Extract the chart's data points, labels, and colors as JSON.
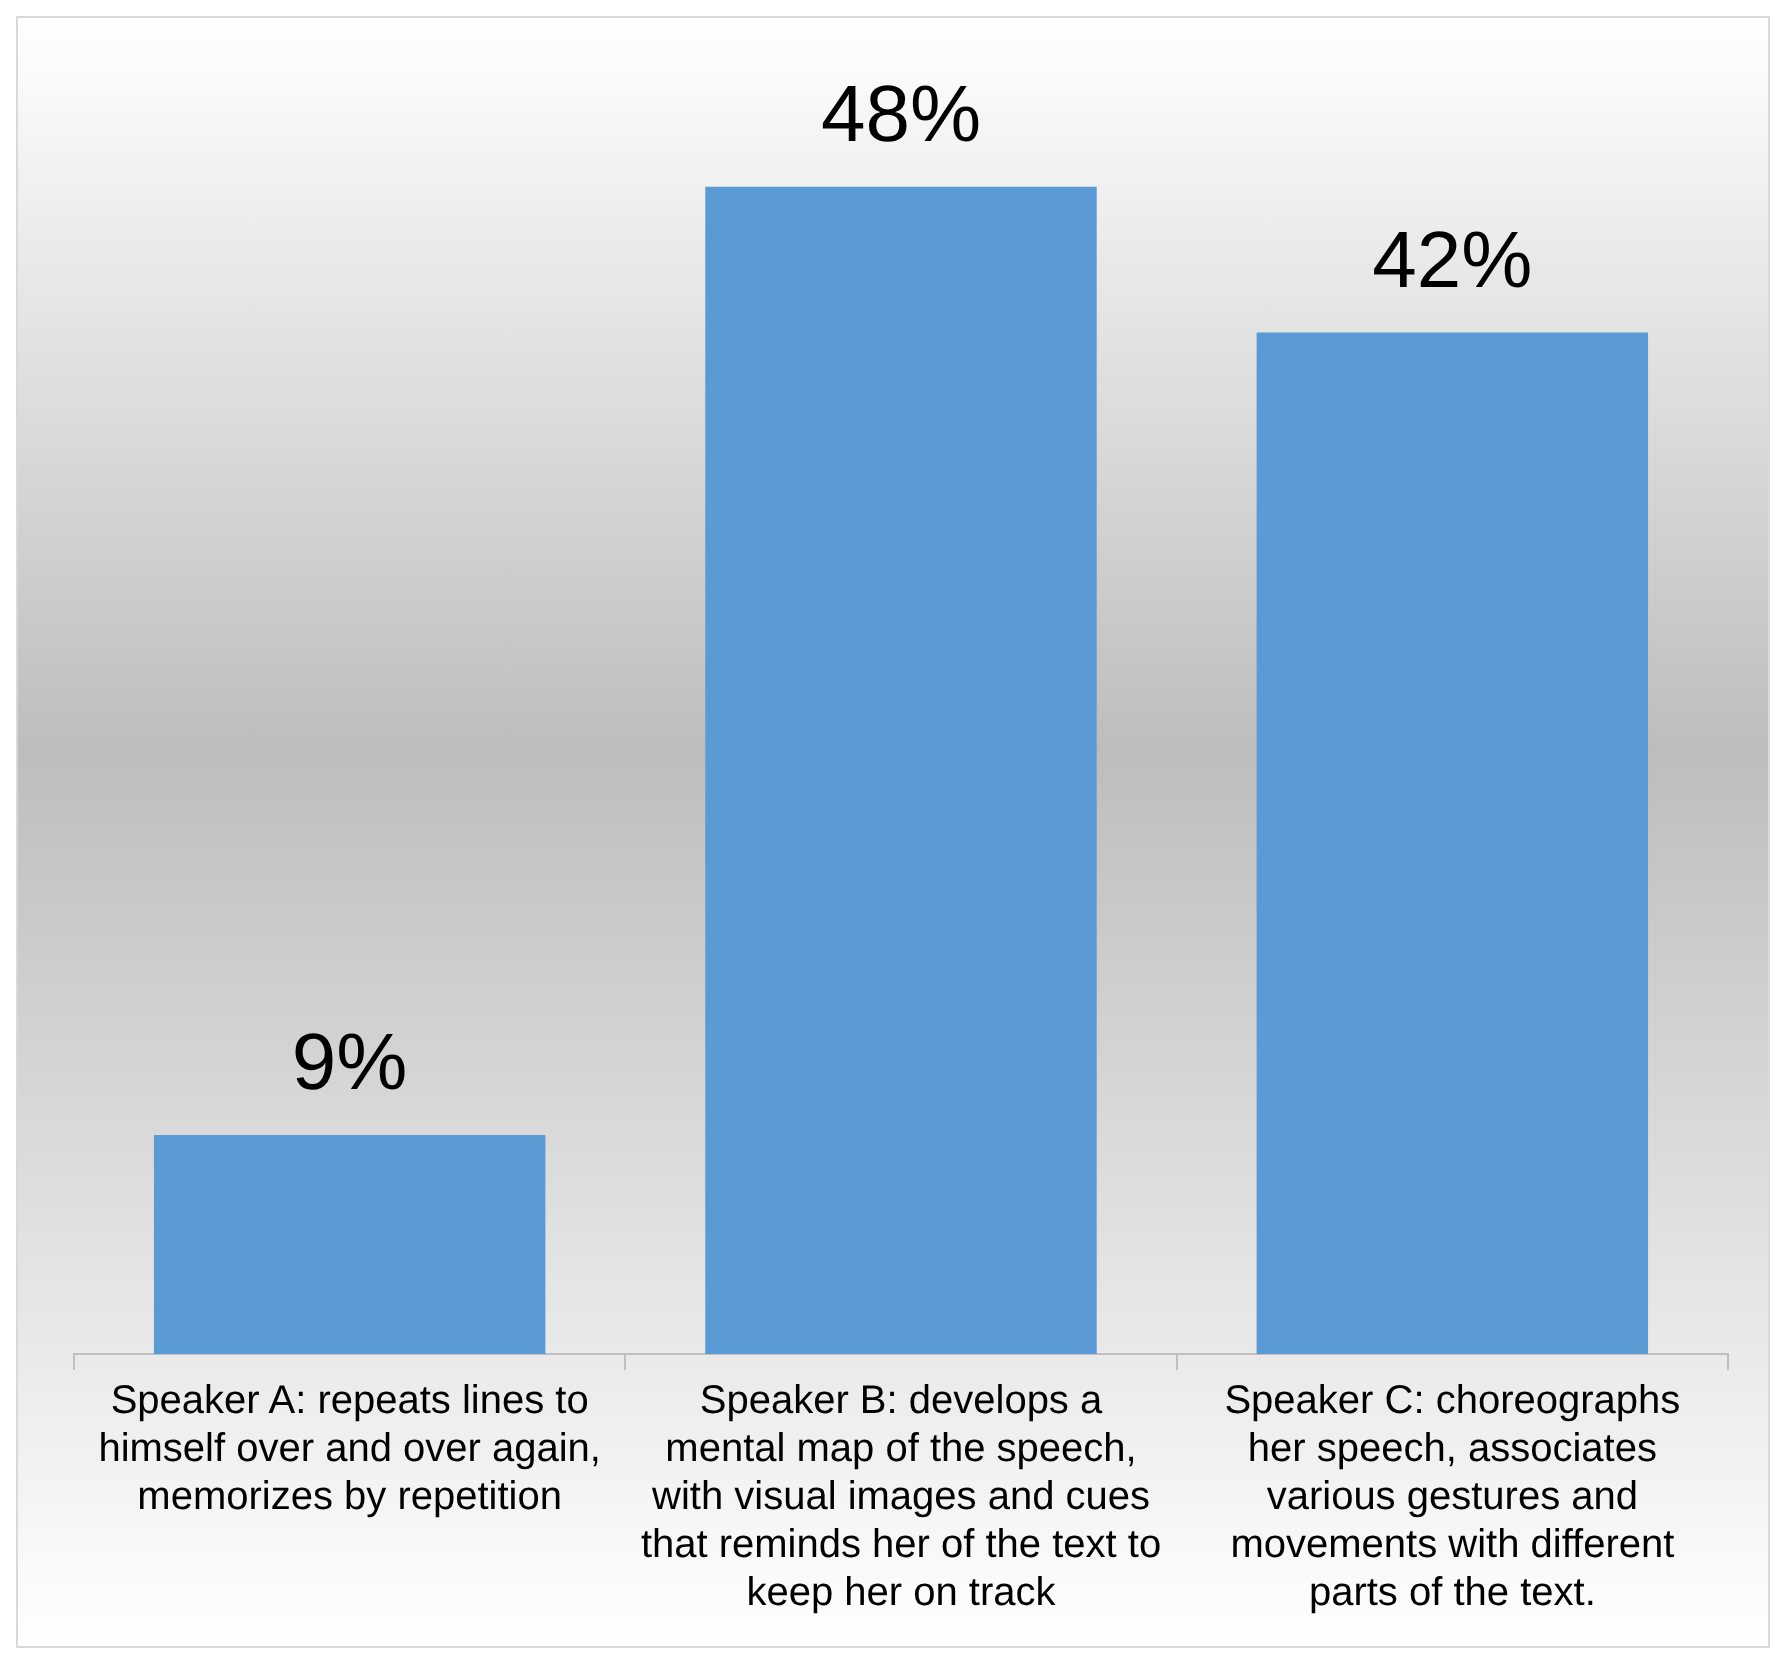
{
  "chart_data": {
    "type": "bar",
    "categories": [
      "Speaker A: repeats lines to himself over and over again, memorizes by repetition",
      "Speaker B: develops a mental map of the speech, with visual images and cues that reminds her of the text to keep her on track",
      "Speaker C: choreographs her speech, associates various gestures and movements with different parts of the text."
    ],
    "values": [
      9,
      48,
      42
    ],
    "value_labels": [
      "9%",
      "48%",
      "42%"
    ],
    "color": "#5b9bd5",
    "relative": false,
    "grid": false,
    "legend": false
  }
}
